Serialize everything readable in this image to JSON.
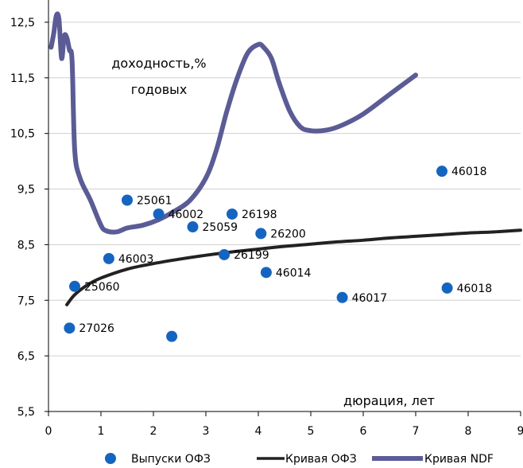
{
  "chart_data": {
    "type": "scatter",
    "title": "",
    "xlabel": "дюрация, лет",
    "ylabel": "доходность,% годовых",
    "ylabel_lines": [
      "доходность,%",
      "годовых"
    ],
    "xlim": [
      0,
      9
    ],
    "ylim": [
      5.5,
      13
    ],
    "x_ticks": [
      "0",
      "1",
      "2",
      "3",
      "4",
      "5",
      "6",
      "7",
      "8",
      "9"
    ],
    "y_ticks": [
      "5,5",
      "6,5",
      "7,5",
      "8,5",
      "9,5",
      "10,5",
      "11,5",
      "12,5"
    ],
    "y_tick_values": [
      5.5,
      6.5,
      7.5,
      8.5,
      9.5,
      10.5,
      11.5,
      12.5
    ],
    "grid": "horizontal",
    "legend_position": "bottom",
    "series": [
      {
        "name": "Выпуски ОФЗ",
        "kind": "scatter",
        "color": "#1565c0",
        "points": [
          {
            "x": 0.4,
            "y": 7.0,
            "label": "27026"
          },
          {
            "x": 0.5,
            "y": 7.75,
            "label": "25060"
          },
          {
            "x": 1.15,
            "y": 8.25,
            "label": "46003"
          },
          {
            "x": 1.5,
            "y": 9.3,
            "label": "25061"
          },
          {
            "x": 2.1,
            "y": 9.05,
            "label": "46002"
          },
          {
            "x": 2.35,
            "y": 6.85,
            "label": ""
          },
          {
            "x": 2.75,
            "y": 8.82,
            "label": "25059"
          },
          {
            "x": 3.35,
            "y": 8.32,
            "label": "26199"
          },
          {
            "x": 3.5,
            "y": 9.05,
            "label": "26198"
          },
          {
            "x": 4.05,
            "y": 8.7,
            "label": "26200"
          },
          {
            "x": 4.15,
            "y": 8.0,
            "label": "46014"
          },
          {
            "x": 5.6,
            "y": 7.55,
            "label": "46017"
          },
          {
            "x": 7.5,
            "y": 9.82,
            "label": "46018"
          },
          {
            "x": 7.6,
            "y": 7.72,
            "label": "46018"
          }
        ]
      },
      {
        "name": "Кривая ОФЗ",
        "kind": "line",
        "color": "#222222",
        "x": [
          0.35,
          0.5,
          0.75,
          1.0,
          1.5,
          2.0,
          2.5,
          3.0,
          3.5,
          4.0,
          4.5,
          5.0,
          5.5,
          6.0,
          6.5,
          7.0,
          7.5,
          8.0,
          8.5,
          9.0
        ],
        "y": [
          7.42,
          7.6,
          7.78,
          7.9,
          8.06,
          8.16,
          8.24,
          8.31,
          8.37,
          8.42,
          8.47,
          8.51,
          8.55,
          8.58,
          8.62,
          8.65,
          8.68,
          8.71,
          8.73,
          8.76
        ]
      },
      {
        "name": "Кривая NDF",
        "kind": "line",
        "color": "#5b5b96",
        "x": [
          0.05,
          0.1,
          0.15,
          0.2,
          0.25,
          0.3,
          0.35,
          0.4,
          0.45,
          0.5,
          0.6,
          0.8,
          1.0,
          1.1,
          1.3,
          1.5,
          1.8,
          2.1,
          2.4,
          2.7,
          3.0,
          3.2,
          3.4,
          3.6,
          3.8,
          4.0,
          4.1,
          4.25,
          4.4,
          4.6,
          4.8,
          5.0,
          5.3,
          5.6,
          6.0,
          6.5,
          7.0
        ],
        "y": [
          12.05,
          12.3,
          12.62,
          12.55,
          11.85,
          12.25,
          12.22,
          12.0,
          11.8,
          10.2,
          9.7,
          9.3,
          8.85,
          8.75,
          8.73,
          8.8,
          8.85,
          8.95,
          9.1,
          9.3,
          9.7,
          10.2,
          10.9,
          11.5,
          11.95,
          12.1,
          12.05,
          11.85,
          11.4,
          10.9,
          10.62,
          10.55,
          10.56,
          10.65,
          10.85,
          11.2,
          11.55
        ]
      }
    ]
  }
}
